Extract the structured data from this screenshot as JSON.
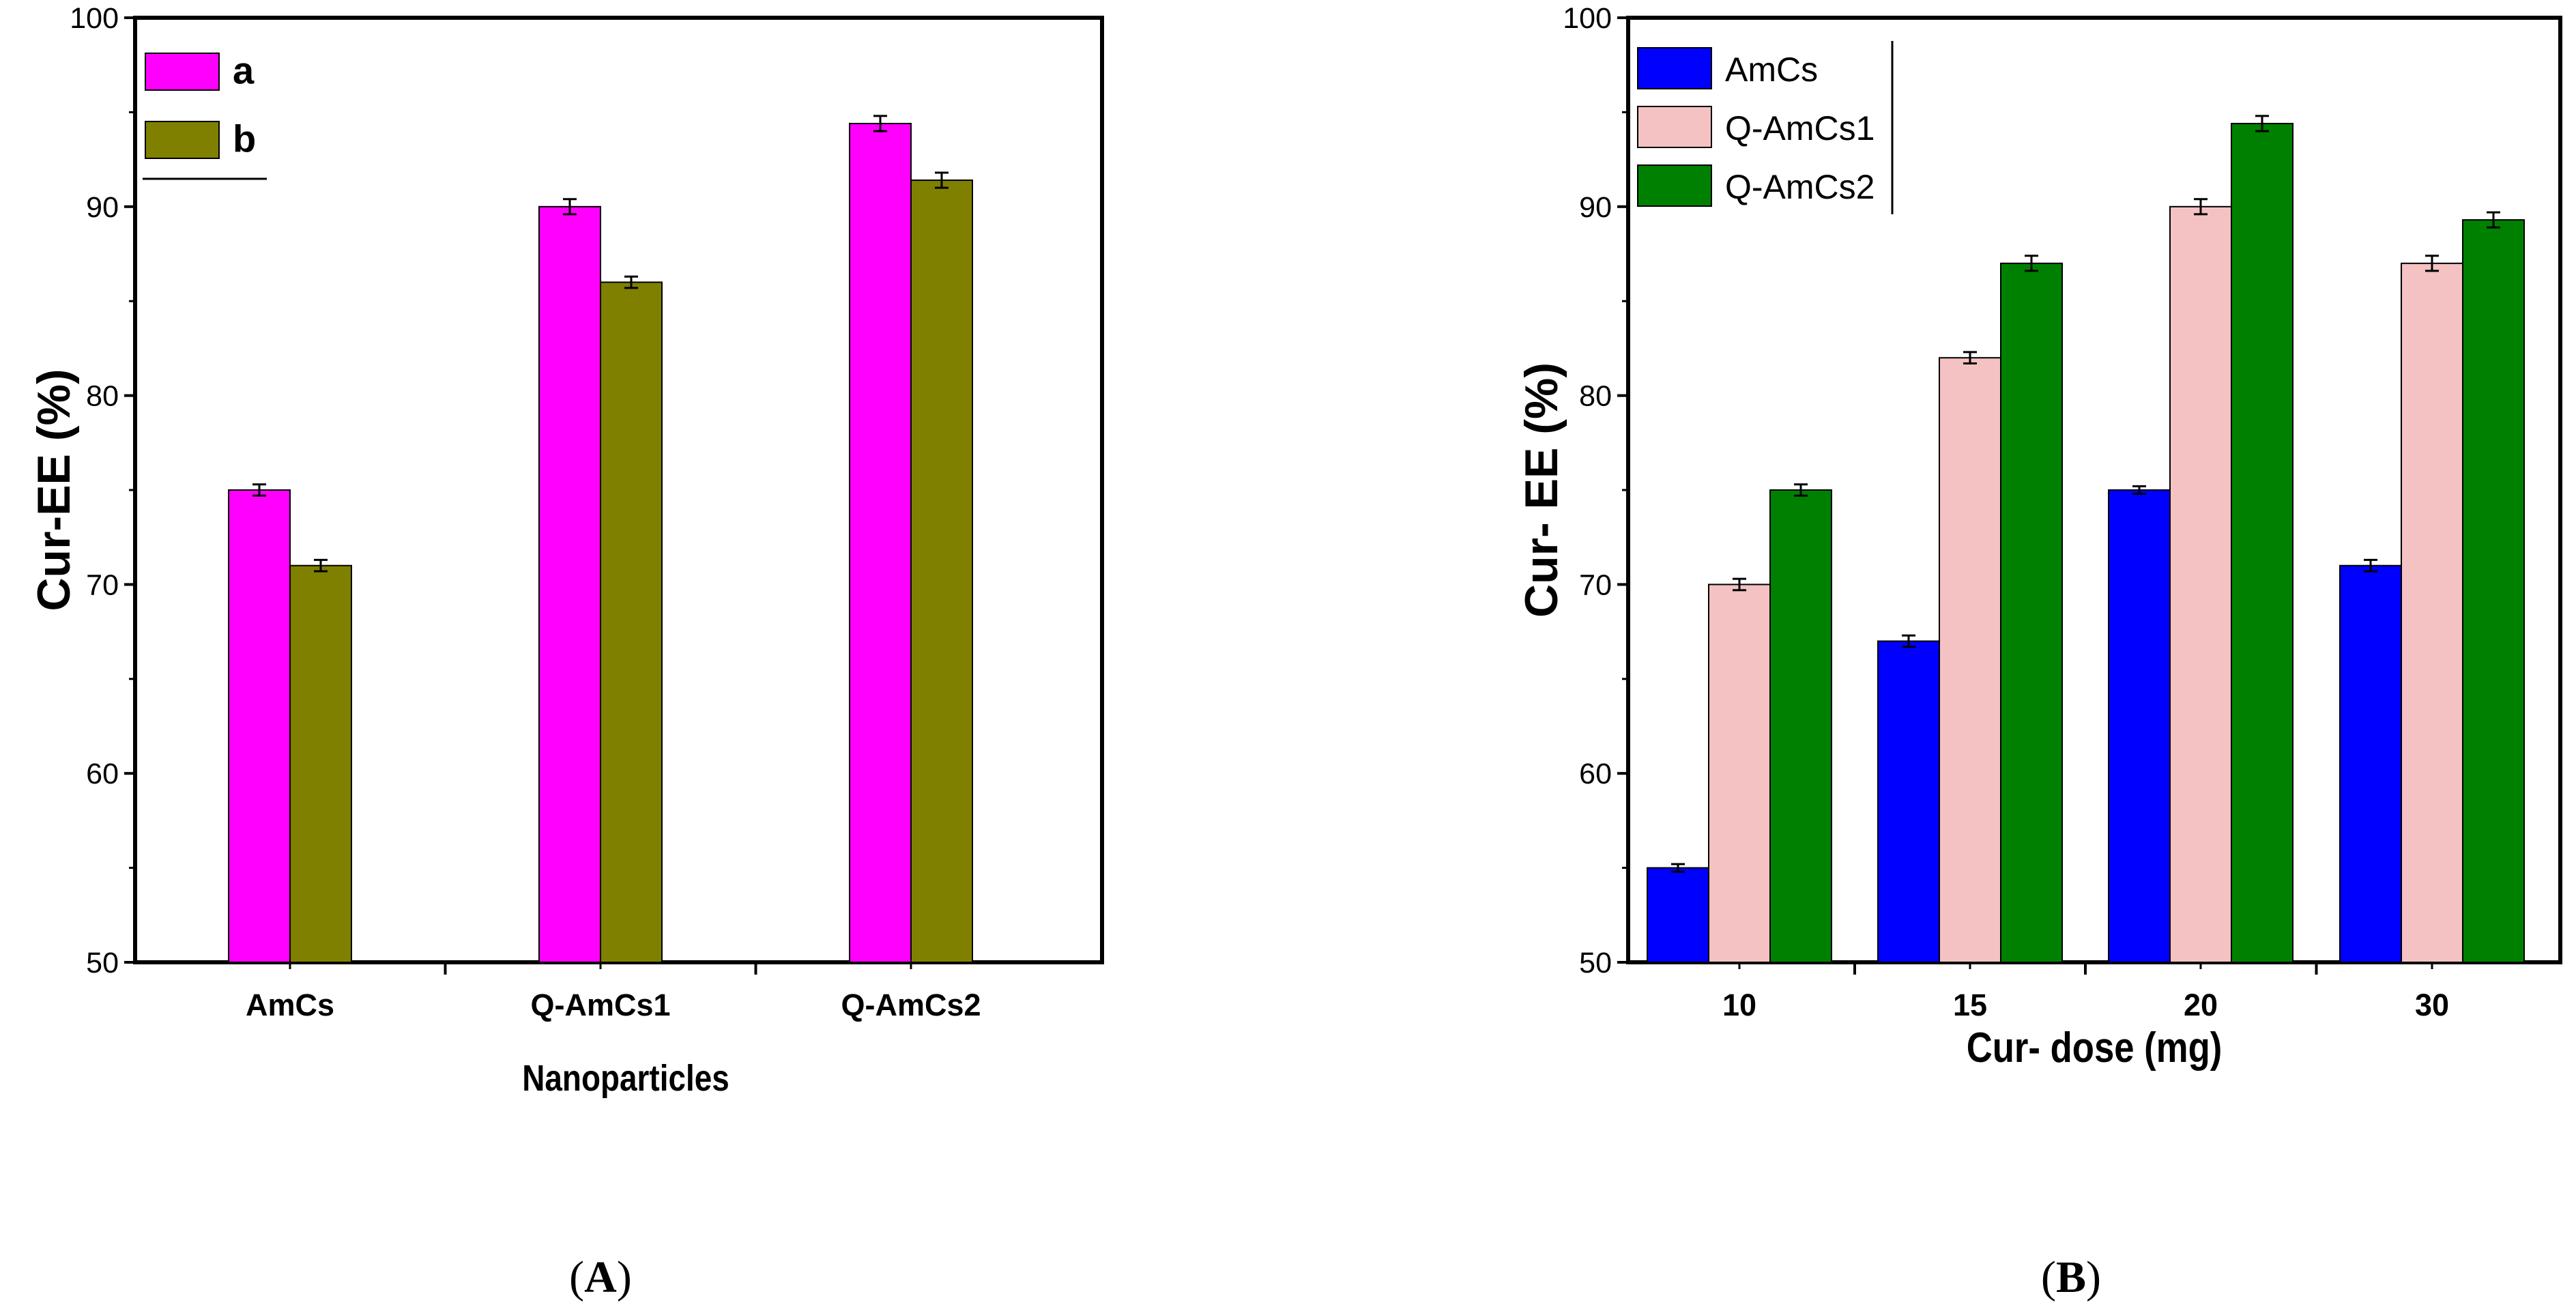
{
  "chart_data": [
    {
      "id": "A",
      "type": "bar",
      "panel_label": "A",
      "title": "",
      "xlabel": "Nanoparticles",
      "ylabel": "Cur-EE (%)",
      "ylim": [
        50,
        100
      ],
      "yticks": [
        50,
        60,
        70,
        80,
        90,
        100
      ],
      "categories": [
        "AmCs",
        "Q-AmCs1",
        "Q-AmCs2"
      ],
      "legend_position": "top-left",
      "series": [
        {
          "name": "a",
          "color": "#ff00ff",
          "values": [
            75,
            90,
            94.4
          ],
          "errors": [
            0.3,
            0.4,
            0.4
          ]
        },
        {
          "name": "b",
          "color": "#808000",
          "values": [
            71,
            86,
            91.4
          ],
          "errors": [
            0.3,
            0.3,
            0.4
          ]
        }
      ]
    },
    {
      "id": "B",
      "type": "bar",
      "panel_label": "B",
      "title": "",
      "xlabel": "Cur- dose (mg)",
      "ylabel": "Cur- EE (%)",
      "ylim": [
        50,
        100
      ],
      "yticks": [
        50,
        60,
        70,
        80,
        90,
        100
      ],
      "categories": [
        "10",
        "15",
        "20",
        "30"
      ],
      "legend_position": "top-left",
      "series": [
        {
          "name": "AmCs",
          "color": "#0000ff",
          "values": [
            55,
            67,
            75,
            71
          ],
          "errors": [
            0.2,
            0.3,
            0.2,
            0.3
          ]
        },
        {
          "name": "Q-AmCs1",
          "color": "#f4c2c2",
          "values": [
            70,
            82,
            90,
            87
          ],
          "errors": [
            0.3,
            0.3,
            0.4,
            0.4
          ]
        },
        {
          "name": "Q-AmCs2",
          "color": "#008000",
          "values": [
            75,
            87,
            94.4,
            89.3
          ],
          "errors": [
            0.3,
            0.4,
            0.4,
            0.4
          ]
        }
      ]
    }
  ]
}
